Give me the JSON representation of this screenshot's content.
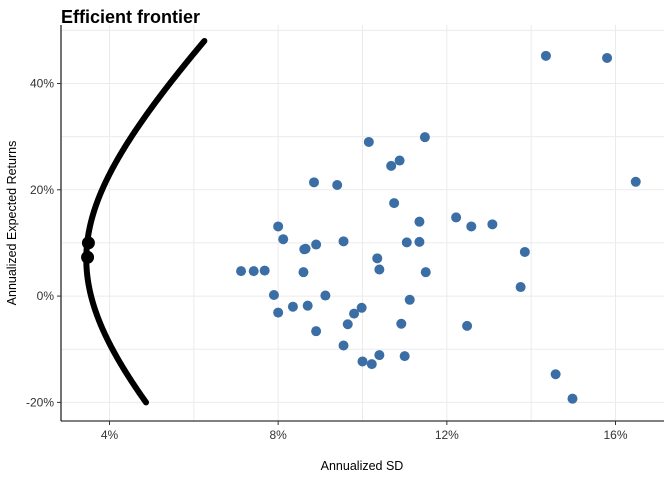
{
  "chart_data": {
    "type": "scatter",
    "title": "Efficient frontier",
    "xlabel": "Annualized SD",
    "ylabel": "Annualized Expected Returns",
    "xlim": [
      0.0285,
      0.1715
    ],
    "ylim": [
      -0.235,
      0.51
    ],
    "x_ticks": [
      {
        "value": 0.04,
        "label": "4%"
      },
      {
        "value": 0.08,
        "label": "8%"
      },
      {
        "value": 0.12,
        "label": "12%"
      },
      {
        "value": 0.16,
        "label": "16%"
      }
    ],
    "y_ticks": [
      {
        "value": -0.2,
        "label": "-20%"
      },
      {
        "value": 0.0,
        "label": "0%"
      },
      {
        "value": 0.2,
        "label": "20%"
      },
      {
        "value": 0.4,
        "label": "40%"
      }
    ],
    "grid": true,
    "colors": {
      "points": "#3a6ea5",
      "frontier": "#000000",
      "grid": "#ebebeb"
    },
    "frontier": {
      "min_sd": 0.0345,
      "min_sd_return": 0.07,
      "sd_range": [
        0.0345,
        0.0625
      ],
      "return_range": [
        -0.2,
        0.48
      ]
    },
    "highlight_points": [
      {
        "x": 0.035,
        "y": 0.1
      },
      {
        "x": 0.0348,
        "y": 0.073
      }
    ],
    "assets": [
      {
        "x": 0.1435,
        "y": 0.452
      },
      {
        "x": 0.158,
        "y": 0.448
      },
      {
        "x": 0.1648,
        "y": 0.215
      },
      {
        "x": 0.1015,
        "y": 0.29
      },
      {
        "x": 0.1148,
        "y": 0.299
      },
      {
        "x": 0.1088,
        "y": 0.255
      },
      {
        "x": 0.1068,
        "y": 0.245
      },
      {
        "x": 0.0885,
        "y": 0.214
      },
      {
        "x": 0.094,
        "y": 0.209
      },
      {
        "x": 0.1075,
        "y": 0.175
      },
      {
        "x": 0.1222,
        "y": 0.148
      },
      {
        "x": 0.1135,
        "y": 0.14
      },
      {
        "x": 0.1308,
        "y": 0.135
      },
      {
        "x": 0.1258,
        "y": 0.131
      },
      {
        "x": 0.08,
        "y": 0.131
      },
      {
        "x": 0.0812,
        "y": 0.107
      },
      {
        "x": 0.0955,
        "y": 0.103
      },
      {
        "x": 0.1105,
        "y": 0.101
      },
      {
        "x": 0.1135,
        "y": 0.102
      },
      {
        "x": 0.089,
        "y": 0.097
      },
      {
        "x": 0.0865,
        "y": 0.089
      },
      {
        "x": 0.0862,
        "y": 0.088
      },
      {
        "x": 0.1385,
        "y": 0.083
      },
      {
        "x": 0.1035,
        "y": 0.071
      },
      {
        "x": 0.104,
        "y": 0.05
      },
      {
        "x": 0.0712,
        "y": 0.047
      },
      {
        "x": 0.0742,
        "y": 0.047
      },
      {
        "x": 0.0768,
        "y": 0.048
      },
      {
        "x": 0.086,
        "y": 0.045
      },
      {
        "x": 0.115,
        "y": 0.045
      },
      {
        "x": 0.1375,
        "y": 0.017
      },
      {
        "x": 0.079,
        "y": 0.002
      },
      {
        "x": 0.0912,
        "y": 0.001
      },
      {
        "x": 0.1112,
        "y": -0.007
      },
      {
        "x": 0.0835,
        "y": -0.02
      },
      {
        "x": 0.087,
        "y": -0.018
      },
      {
        "x": 0.0998,
        "y": -0.022
      },
      {
        "x": 0.08,
        "y": -0.031
      },
      {
        "x": 0.098,
        "y": -0.033
      },
      {
        "x": 0.0965,
        "y": -0.053
      },
      {
        "x": 0.1092,
        "y": -0.052
      },
      {
        "x": 0.1248,
        "y": -0.056
      },
      {
        "x": 0.089,
        "y": -0.066
      },
      {
        "x": 0.0955,
        "y": -0.093
      },
      {
        "x": 0.104,
        "y": -0.111
      },
      {
        "x": 0.11,
        "y": -0.113
      },
      {
        "x": 0.1,
        "y": -0.123
      },
      {
        "x": 0.1022,
        "y": -0.128
      },
      {
        "x": 0.1458,
        "y": -0.147
      },
      {
        "x": 0.1498,
        "y": -0.193
      }
    ]
  }
}
